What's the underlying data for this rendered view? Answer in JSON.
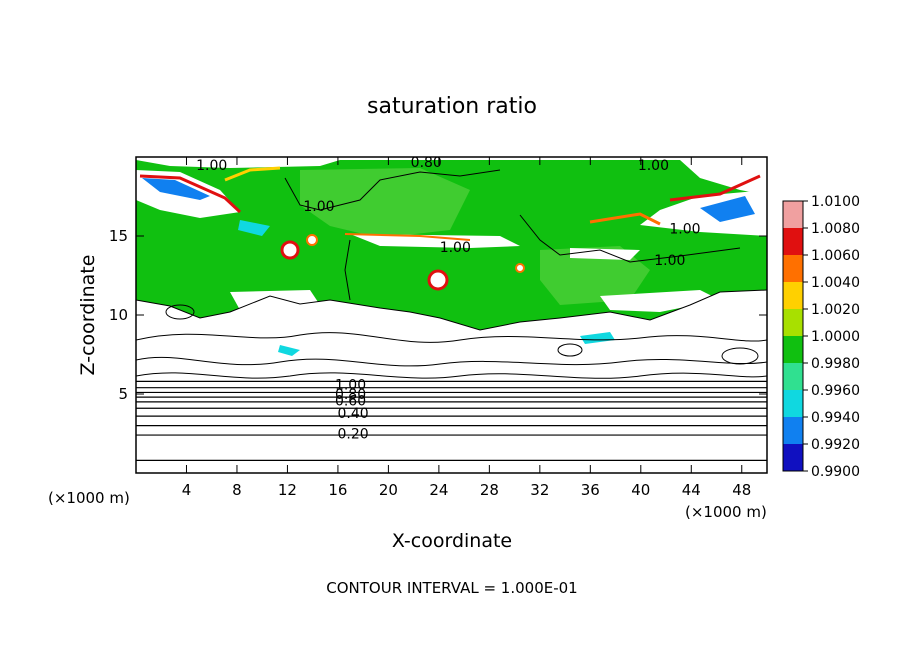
{
  "chart_data": {
    "type": "heatmap",
    "title": "saturation ratio",
    "xlabel": "X-coordinate",
    "ylabel": "Z-coordinate",
    "x_unit": "(×1000 m)",
    "z_unit": "(×1000 m)",
    "xlim": [
      0,
      50
    ],
    "ylim": [
      0,
      20
    ],
    "x_ticks": [
      "4",
      "8",
      "12",
      "16",
      "20",
      "24",
      "28",
      "32",
      "36",
      "40",
      "44",
      "48"
    ],
    "y_ticks": [
      "5",
      "10",
      "15"
    ],
    "x_tick_values": [
      4,
      8,
      12,
      16,
      20,
      24,
      28,
      32,
      36,
      40,
      44,
      48
    ],
    "y_tick_values": [
      5,
      10,
      15
    ],
    "colorbar_labels": [
      "1.0100",
      "1.0080",
      "1.0060",
      "1.0040",
      "1.0020",
      "1.0000",
      "0.9980",
      "0.9960",
      "0.9940",
      "0.9920",
      "0.9900"
    ],
    "colorbar_values": [
      1.01,
      1.008,
      1.006,
      1.004,
      1.002,
      1.0,
      0.998,
      0.996,
      0.994,
      0.992,
      0.99
    ],
    "colorbar_colors": [
      "#f0a0a0",
      "#e01010",
      "#ff7000",
      "#ffd000",
      "#a8e000",
      "#10c010",
      "#30e090",
      "#10d8e0",
      "#1080f0",
      "#1010c0",
      "#7020a0"
    ],
    "contour_interval": "CONTOUR INTERVAL =  1.000E-01",
    "contour_labels": [
      {
        "text": "1.00",
        "x": 6,
        "z": 19.3
      },
      {
        "text": "0.80",
        "x": 23,
        "z": 19.5
      },
      {
        "text": "1.00",
        "x": 41,
        "z": 19.3
      },
      {
        "text": "1.00",
        "x": 14.5,
        "z": 16.7
      },
      {
        "text": "1.00",
        "x": 25.3,
        "z": 14.1
      },
      {
        "text": "1.00",
        "x": 43.5,
        "z": 15.3
      },
      {
        "text": "1.00",
        "x": 42.3,
        "z": 13.3
      },
      {
        "text": "1.00",
        "x": 17,
        "z": 5.4
      },
      {
        "text": "0.80",
        "x": 17,
        "z": 4.8
      },
      {
        "text": "0.60",
        "x": 17,
        "z": 4.4
      },
      {
        "text": "0.40",
        "x": 17.2,
        "z": 3.6
      },
      {
        "text": "0.20",
        "x": 17.2,
        "z": 2.3
      }
    ],
    "low_level_contours_z": [
      0.8,
      2.4,
      3.0,
      3.6,
      4.1,
      4.5,
      4.8,
      5.1,
      5.4,
      5.8
    ]
  }
}
